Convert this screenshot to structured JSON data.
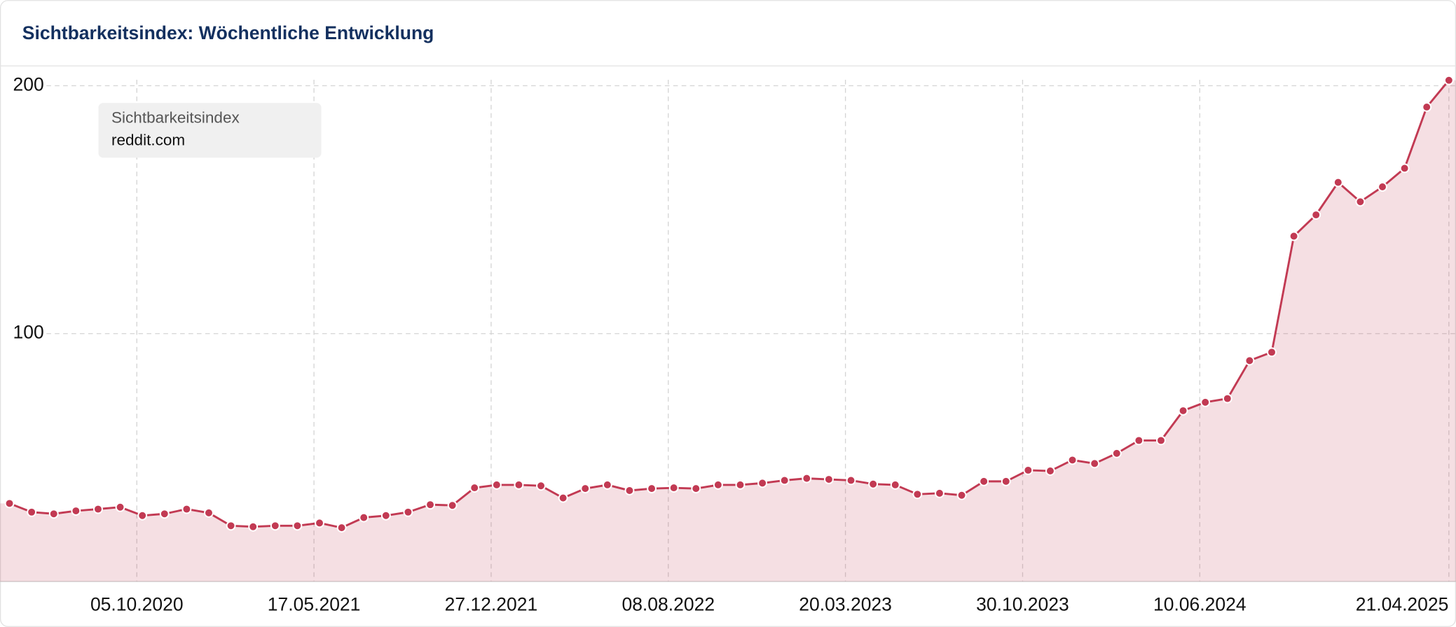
{
  "chart_data": {
    "type": "line",
    "title": "Sichtbarkeitsindex: Wöchentliche Entwicklung",
    "legend_title": "Sichtbarkeitsindex",
    "x": [
      "2020-04-27",
      "2020-05-25",
      "2020-06-22",
      "2020-07-20",
      "2020-08-17",
      "2020-09-14",
      "2020-10-12",
      "2020-11-09",
      "2020-12-07",
      "2021-01-04",
      "2021-02-01",
      "2021-03-01",
      "2021-03-29",
      "2021-04-26",
      "2021-05-24",
      "2021-06-21",
      "2021-07-19",
      "2021-08-16",
      "2021-09-13",
      "2021-10-11",
      "2021-11-08",
      "2021-12-06",
      "2022-01-03",
      "2022-01-31",
      "2022-02-28",
      "2022-03-28",
      "2022-04-25",
      "2022-05-23",
      "2022-06-20",
      "2022-07-18",
      "2022-08-15",
      "2022-09-12",
      "2022-10-10",
      "2022-11-07",
      "2022-12-05",
      "2023-01-02",
      "2023-01-30",
      "2023-02-27",
      "2023-03-27",
      "2023-04-24",
      "2023-05-22",
      "2023-06-19",
      "2023-07-17",
      "2023-08-14",
      "2023-09-11",
      "2023-10-09",
      "2023-11-06",
      "2023-12-04",
      "2024-01-01",
      "2024-01-29",
      "2024-02-26",
      "2024-03-25",
      "2024-04-22",
      "2024-05-20",
      "2024-06-17",
      "2024-07-15",
      "2024-08-12",
      "2024-09-09",
      "2024-10-07",
      "2024-11-04",
      "2024-12-02",
      "2024-12-30",
      "2025-01-27",
      "2025-02-24",
      "2025-03-24",
      "2025-04-21"
    ],
    "series": [
      {
        "name": "reddit.com",
        "color": "#c23a53",
        "values": [
          31.5,
          28,
          27.3,
          28.5,
          29.2,
          30,
          26.6,
          27.3,
          29.2,
          27.7,
          22.5,
          22.1,
          22.5,
          22.5,
          23.6,
          21.7,
          25.8,
          26.6,
          28,
          31,
          30.7,
          37.8,
          39,
          39,
          38.6,
          33.7,
          37.5,
          39,
          36.7,
          37.5,
          37.8,
          37.5,
          39,
          39,
          39.7,
          40.8,
          41.6,
          41.2,
          40.8,
          39.3,
          39,
          35.2,
          35.6,
          34.8,
          40.4,
          40.4,
          44.9,
          44.6,
          49,
          47.6,
          51.7,
          56.9,
          56.9,
          68.9,
          72.3,
          73.8,
          89.1,
          92.5,
          139.3,
          147.9,
          161,
          153.2,
          159.2,
          166.7,
          191.4,
          202.2
        ]
      }
    ],
    "xlim": [
      "2020-04-15",
      "2025-04-30"
    ],
    "xticks": [
      {
        "value": "2020-10-05",
        "label": "05.10.2020"
      },
      {
        "value": "2021-05-17",
        "label": "17.05.2021"
      },
      {
        "value": "2021-12-27",
        "label": "27.12.2021"
      },
      {
        "value": "2022-08-08",
        "label": "08.08.2022"
      },
      {
        "value": "2023-03-20",
        "label": "20.03.2023"
      },
      {
        "value": "2023-10-30",
        "label": "30.10.2023"
      },
      {
        "value": "2024-06-10",
        "label": "10.06.2024"
      },
      {
        "value": "2025-04-21",
        "label": "21.04.2025"
      }
    ],
    "ylim": [
      0,
      208
    ],
    "yticks": [
      100,
      200
    ],
    "grid": true
  }
}
